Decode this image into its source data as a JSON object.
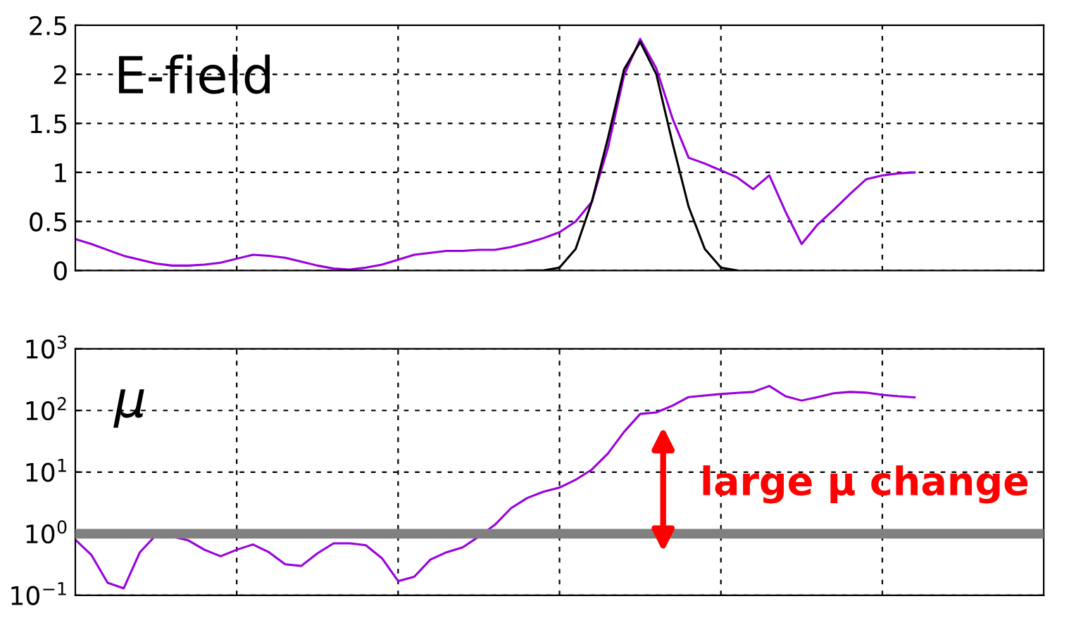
{
  "chart_data": [
    {
      "type": "line",
      "title": "E-field",
      "categories": [
        null,
        null,
        null,
        null,
        null,
        null,
        null,
        null,
        null,
        null,
        null,
        null,
        null,
        null,
        null,
        null,
        null,
        null,
        null,
        null,
        null,
        null,
        null,
        null,
        null,
        null,
        null,
        null,
        null,
        null,
        null,
        null,
        null,
        null,
        null,
        null,
        null,
        null,
        null,
        null,
        null,
        null,
        null,
        null,
        null,
        null,
        null,
        null,
        null,
        null,
        null,
        null,
        null,
        null,
        null,
        null,
        null,
        null,
        null,
        null,
        null
      ],
      "ylim": [
        0,
        2.5
      ],
      "yticks": [
        0,
        0.5,
        1,
        1.5,
        2,
        2.5
      ],
      "tick_labels": "y",
      "grid": true,
      "series": [
        {
          "color": "#9900dd",
          "values": [
            0.32,
            0.27,
            0.21,
            0.15,
            0.11,
            0.07,
            0.05,
            0.05,
            0.06,
            0.08,
            0.12,
            0.16,
            0.15,
            0.13,
            0.09,
            0.05,
            0.02,
            0.01,
            0.03,
            0.06,
            0.11,
            0.16,
            0.18,
            0.2,
            0.2,
            0.21,
            0.21,
            0.24,
            0.28,
            0.33,
            0.39,
            0.5,
            0.7,
            1.25,
            1.99,
            2.36,
            2.06,
            1.55,
            1.15,
            1.09,
            1.02,
            0.95,
            0.83,
            0.97,
            0.6,
            0.27,
            0.47,
            0.62,
            0.78,
            0.93,
            0.97,
            0.99,
            1.0,
            null,
            null,
            null,
            null,
            null,
            null,
            null,
            null
          ]
        },
        {
          "color": "#000000",
          "values": [
            null,
            null,
            null,
            null,
            null,
            null,
            null,
            null,
            null,
            null,
            null,
            null,
            null,
            null,
            null,
            null,
            null,
            null,
            null,
            null,
            null,
            null,
            null,
            null,
            null,
            null,
            null,
            null,
            0,
            0,
            0.03,
            0.22,
            0.7,
            1.35,
            2.05,
            2.33,
            2.0,
            1.3,
            0.65,
            0.22,
            0.03,
            0,
            null,
            null,
            null,
            null,
            null,
            null,
            null,
            null,
            null,
            null,
            null,
            null,
            null,
            null,
            null,
            null,
            null,
            null,
            null
          ]
        }
      ]
    },
    {
      "type": "line",
      "title": "μ",
      "log": "y",
      "categories": [
        null,
        null,
        null,
        null,
        null,
        null,
        null,
        null,
        null,
        null,
        null,
        null,
        null,
        null,
        null,
        null,
        null,
        null,
        null,
        null,
        null,
        null,
        null,
        null,
        null,
        null,
        null,
        null,
        null,
        null,
        null,
        null,
        null,
        null,
        null,
        null,
        null,
        null,
        null,
        null,
        null,
        null,
        null,
        null,
        null,
        null,
        null,
        null,
        null,
        null,
        null,
        null,
        null,
        null,
        null,
        null,
        null,
        null,
        null,
        null,
        null
      ],
      "ylim": [
        0.1,
        1000
      ],
      "yticks": [
        {
          "value": 0.1,
          "label": "10$^{−1}$"
        },
        {
          "value": 1,
          "label": "10$^{0}$"
        },
        {
          "value": 10,
          "label": "10$^{1}$"
        },
        {
          "value": 100,
          "label": "10$^{2}$"
        },
        {
          "value": 1000,
          "label": "10$^{3}$"
        }
      ],
      "tick_labels": "y",
      "grid": true,
      "series": [
        {
          "color": "#9900dd",
          "values": [
            0.8,
            0.45,
            0.16,
            0.13,
            0.5,
            0.95,
            0.9,
            0.78,
            0.55,
            0.43,
            0.55,
            0.67,
            0.5,
            0.32,
            0.3,
            0.48,
            0.7,
            0.7,
            0.65,
            0.4,
            0.17,
            0.2,
            0.38,
            0.5,
            0.6,
            0.9,
            1.4,
            2.6,
            3.8,
            4.8,
            5.6,
            7.5,
            11,
            20,
            45,
            88,
            93,
            120,
            165,
            175,
            185,
            193,
            200,
            250,
            170,
            145,
            165,
            190,
            200,
            195,
            180,
            170,
            163,
            null,
            null,
            null,
            null,
            null,
            null,
            null,
            null
          ]
        }
      ],
      "ref_lines": [
        {
          "axis": "y",
          "value": 1,
          "color": "#808080"
        }
      ],
      "annotations": [
        "large μ change"
      ]
    }
  ]
}
